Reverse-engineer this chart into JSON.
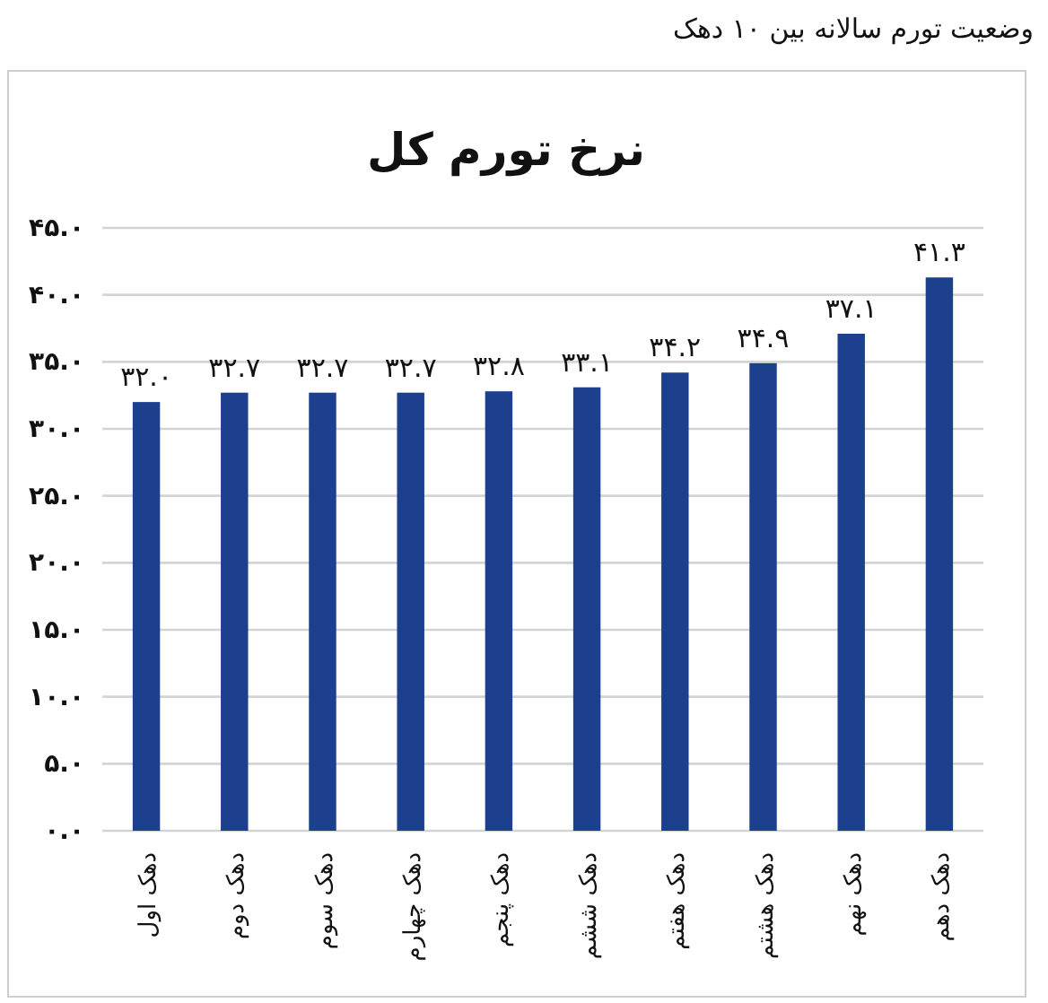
{
  "chart_data": {
    "type": "bar",
    "title": "نرخ تورم کل",
    "annotations": [
      "وضعیت تورم سالانه بین ۱۰ دهک"
    ],
    "categories": [
      "دهک اول",
      "دهک دوم",
      "دهک سوم",
      "دهک چهارم",
      "دهک پنجم",
      "دهک ششم",
      "دهک هفتم",
      "دهک هشتم",
      "دهک نهم",
      "دهک دهم"
    ],
    "values": [
      32.0,
      32.7,
      32.7,
      32.7,
      32.8,
      33.1,
      34.2,
      34.9,
      37.1,
      41.3
    ],
    "value_labels": [
      "۳۲.۰",
      "۳۲.۷",
      "۳۲.۷",
      "۳۲.۷",
      "۳۲.۸",
      "۳۳.۱",
      "۳۴.۲",
      "۳۴.۹",
      "۳۷.۱",
      "۴۱.۳"
    ],
    "color": "#1c3f8e",
    "ylim": [
      0,
      45
    ],
    "yticks": [
      {
        "value": 0,
        "label": "۰.۰"
      },
      {
        "value": 5,
        "label": "۵.۰"
      },
      {
        "value": 10,
        "label": "۱۰.۰"
      },
      {
        "value": 15,
        "label": "۱۵.۰"
      },
      {
        "value": 20,
        "label": "۲۰.۰"
      },
      {
        "value": 25,
        "label": "۲۵.۰"
      },
      {
        "value": 30,
        "label": "۳۰.۰"
      },
      {
        "value": 35,
        "label": "۳۵.۰"
      },
      {
        "value": 40,
        "label": "۴۰.۰"
      },
      {
        "value": 45,
        "label": "۴۵.۰"
      }
    ],
    "grid": "y"
  }
}
